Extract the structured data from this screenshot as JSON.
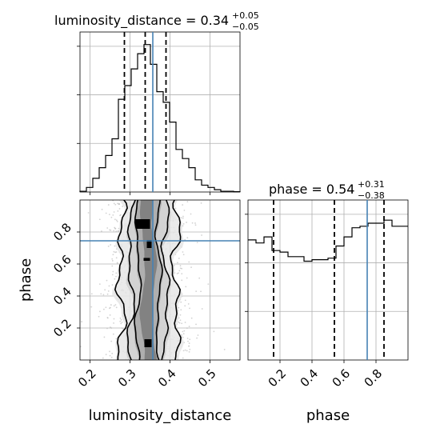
{
  "chart_data": [
    {
      "type": "histogram",
      "panel": "luminosity_distance marginal",
      "title": {
        "prefix": "luminosity_distance = ",
        "median": "0.34",
        "plus": "+0.05",
        "minus": "−0.05"
      },
      "xlim": [
        0.175,
        0.575
      ],
      "ylim": [
        0,
        1.0
      ],
      "grid": true,
      "bin_edges": [
        0.175,
        0.191,
        0.207,
        0.223,
        0.239,
        0.255,
        0.271,
        0.287,
        0.303,
        0.319,
        0.335,
        0.351,
        0.367,
        0.383,
        0.399,
        0.415,
        0.431,
        0.447,
        0.463,
        0.479,
        0.495,
        0.511,
        0.527,
        0.543,
        0.559,
        0.575
      ],
      "counts": [
        0.005,
        0.03,
        0.09,
        0.16,
        0.24,
        0.35,
        0.61,
        0.7,
        0.81,
        0.91,
        0.97,
        0.84,
        0.66,
        0.59,
        0.46,
        0.28,
        0.22,
        0.16,
        0.08,
        0.045,
        0.03,
        0.015,
        0.005,
        0.005,
        0.002
      ],
      "quantiles": [
        0.286,
        0.338,
        0.39
      ],
      "truth": 0.357
    },
    {
      "type": "histogram",
      "panel": "phase marginal",
      "title": {
        "prefix": "phase = ",
        "median": "0.54",
        "plus": "+0.31",
        "minus": "−0.38"
      },
      "xlim": [
        0.0,
        1.0
      ],
      "ylim": [
        0,
        1.0
      ],
      "grid": true,
      "bin_edges": [
        0.0,
        0.05,
        0.1,
        0.15,
        0.2,
        0.25,
        0.3,
        0.35,
        0.4,
        0.45,
        0.5,
        0.55,
        0.6,
        0.65,
        0.7,
        0.75,
        0.8,
        0.85,
        0.9,
        0.95,
        1.0
      ],
      "counts": [
        0.79,
        0.77,
        0.81,
        0.72,
        0.71,
        0.68,
        0.68,
        0.65,
        0.66,
        0.66,
        0.67,
        0.75,
        0.81,
        0.87,
        0.88,
        0.9,
        0.9,
        0.92,
        0.88,
        0.88
      ],
      "quantiles": [
        0.16,
        0.54,
        0.85
      ],
      "truth": 0.745
    },
    {
      "type": "scatter",
      "panel": "2D joint: luminosity_distance vs phase",
      "xlabel": "luminosity_distance",
      "ylabel": "phase",
      "xlim": [
        0.175,
        0.575
      ],
      "ylim": [
        0.0,
        1.0
      ],
      "truth": {
        "x": 0.357,
        "y": 0.745
      },
      "x_center": 0.346,
      "contour_half_widths": [
        0.075,
        0.048,
        0.028,
        0.014
      ],
      "dense_blocks": [
        {
          "x": 0.314,
          "y": 0.82,
          "w": 0.036,
          "h": 0.06
        },
        {
          "x": 0.342,
          "y": 0.7,
          "w": 0.012,
          "h": 0.05
        },
        {
          "x": 0.334,
          "y": 0.62,
          "w": 0.016,
          "h": 0.018
        },
        {
          "x": 0.336,
          "y": 0.08,
          "w": 0.018,
          "h": 0.05
        }
      ]
    }
  ],
  "axes": {
    "lumdist_ticks": [
      "0.2",
      "0.3",
      "0.4",
      "0.5"
    ],
    "lumdist_tick_values": [
      0.2,
      0.3,
      0.4,
      0.5
    ],
    "phase_ticks": [
      "0.2",
      "0.4",
      "0.6",
      "0.8"
    ],
    "phase_tick_values": [
      0.2,
      0.4,
      0.6,
      0.8
    ],
    "xlabel_left": "luminosity_distance",
    "xlabel_right": "phase",
    "ylabel": "phase"
  },
  "colors": {
    "truth": "#4682b4",
    "line": "#000000",
    "grid": "#b0b0b0",
    "scatter": "#bfbfbf"
  }
}
